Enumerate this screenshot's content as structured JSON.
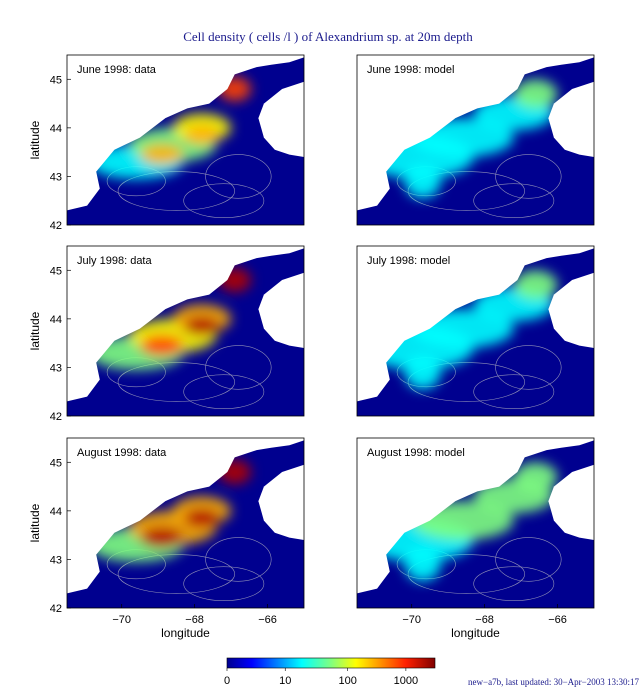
{
  "chart_data": {
    "type": "heatmap",
    "title": "Cell density ( cells /l ) of Alexandrium sp. at 20m depth",
    "xlabel": "longitude",
    "ylabel": "latitude",
    "xlim": [
      -71.5,
      -65
    ],
    "ylim": [
      42,
      45.5
    ],
    "x_ticks": [
      "−70",
      "−68",
      "−66"
    ],
    "y_ticks": [
      "42",
      "43",
      "44",
      "45"
    ],
    "colorbar": {
      "ticks": [
        "0",
        "10",
        "100",
        "1000"
      ],
      "colors": [
        "#00008f",
        "#0000ff",
        "#0080ff",
        "#00ffff",
        "#80ff80",
        "#ffff00",
        "#ff8000",
        "#ff0000",
        "#800000"
      ]
    },
    "panels": [
      {
        "label": "June 1998: data",
        "intensity": 0.55
      },
      {
        "label": "June 1998: model",
        "intensity": 0.35
      },
      {
        "label": "July 1998: data",
        "intensity": 0.75
      },
      {
        "label": "July 1998: model",
        "intensity": 0.4
      },
      {
        "label": "August 1998: data",
        "intensity": 0.85
      },
      {
        "label": "August 1998: model",
        "intensity": 0.55
      }
    ]
  },
  "footer": "new−a7b, last updated: 30−Apr−2003 13:30:17"
}
